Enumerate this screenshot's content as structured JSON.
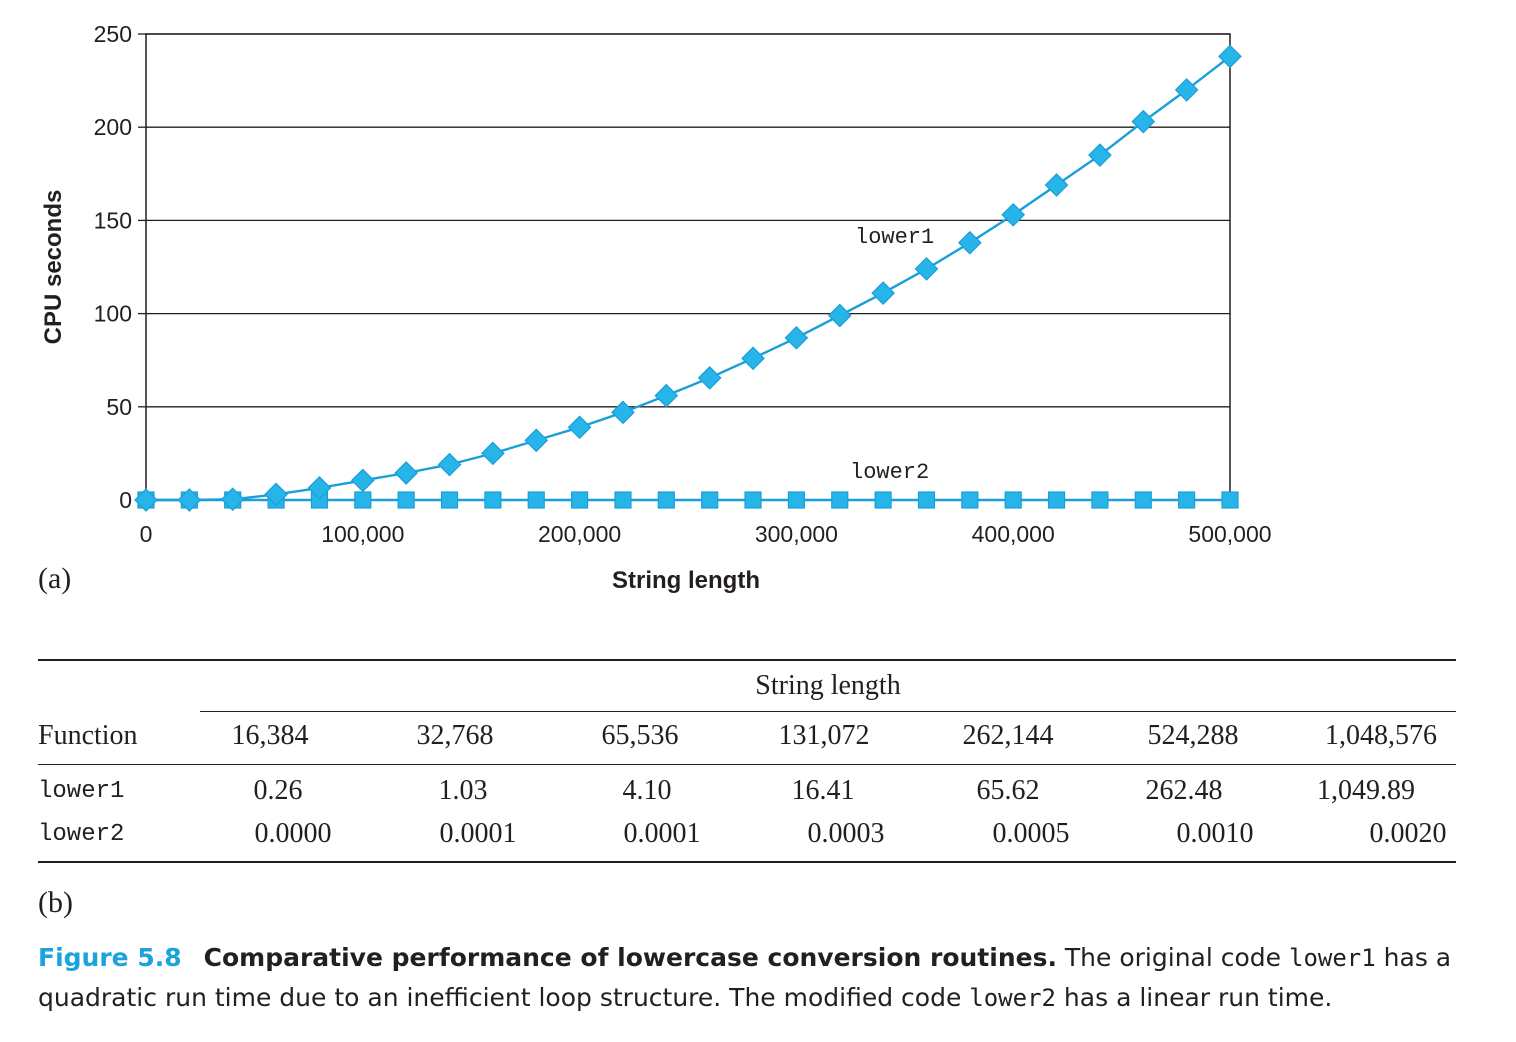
{
  "chart_data": {
    "type": "line",
    "xlabel": "String length",
    "ylabel": "CPU seconds",
    "xlim": [
      0,
      500000
    ],
    "ylim": [
      0,
      250
    ],
    "x_ticks": [
      "0",
      "100,000",
      "200,000",
      "300,000",
      "400,000",
      "500,000"
    ],
    "y_ticks": [
      "0",
      "50",
      "100",
      "150",
      "200",
      "250"
    ],
    "grid": "horizontal",
    "marker_color": "#27b4e8",
    "line_color": "#1a9fd8",
    "x": [
      0,
      20000,
      40000,
      60000,
      80000,
      100000,
      120000,
      140000,
      160000,
      180000,
      200000,
      220000,
      240000,
      260000,
      280000,
      300000,
      320000,
      340000,
      360000,
      380000,
      400000,
      420000,
      440000,
      460000,
      480000,
      500000
    ],
    "series": [
      {
        "name": "lower1",
        "marker": "diamond",
        "values": [
          0,
          0,
          0.4,
          3,
          6.5,
          10.5,
          14.5,
          19,
          25,
          32,
          39,
          47,
          56,
          65.5,
          76,
          87,
          99,
          111,
          124,
          138,
          153,
          169,
          185,
          203,
          220,
          238
        ]
      },
      {
        "name": "lower2",
        "marker": "square",
        "values": [
          0,
          0,
          0,
          0,
          0,
          0,
          0,
          0,
          0,
          0,
          0,
          0,
          0,
          0,
          0,
          0,
          0,
          0,
          0,
          0,
          0,
          0,
          0,
          0,
          0,
          0
        ]
      }
    ]
  },
  "labels": {
    "part_a": "(a)",
    "part_b": "(b)"
  },
  "table": {
    "span_header": "String length",
    "function_header": "Function",
    "columns": [
      "16,384",
      "32,768",
      "65,536",
      "131,072",
      "262,144",
      "524,288",
      "1,048,576"
    ],
    "rows": [
      {
        "name": "lower1",
        "values": [
          "0.26",
          "1.03",
          "4.10",
          "16.41",
          "65.62",
          "262.48",
          "1,049.89"
        ]
      },
      {
        "name": "lower2",
        "values": [
          "0.0000",
          "0.0001",
          "0.0001",
          "0.0003",
          "0.0005",
          "0.0010",
          "0.0020"
        ]
      }
    ]
  },
  "caption": {
    "number": "Figure 5.8",
    "title": "Comparative performance of lowercase conversion routines.",
    "text_1": " The original code ",
    "code_1": "lower1",
    "text_2": " has a quadratic run time due to an inefficient loop structure. The modified code ",
    "code_2": "lower2",
    "text_3": " has a linear run time."
  }
}
